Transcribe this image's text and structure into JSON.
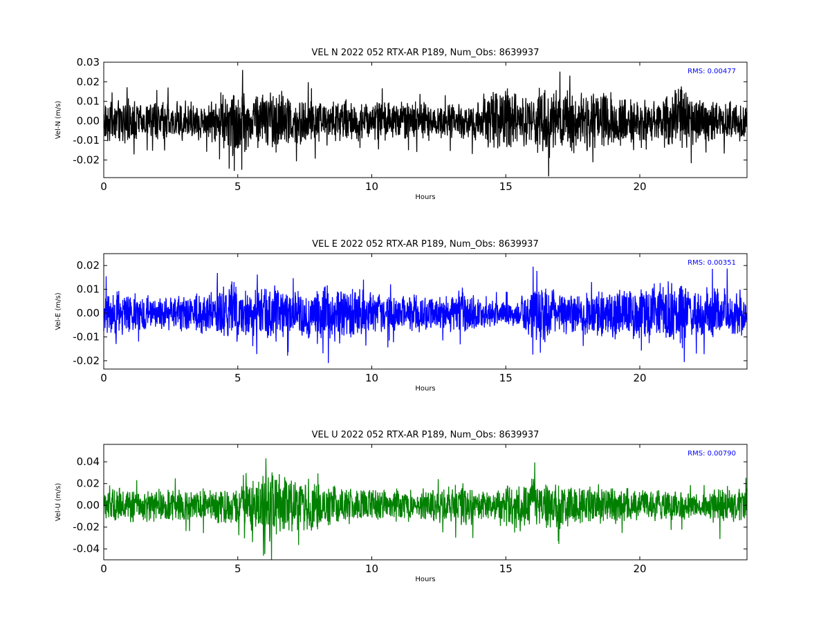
{
  "colors": {
    "north": "#000000",
    "east": "#0000ff",
    "up": "#008000",
    "rms_text": "#0000ff"
  },
  "chart_data": [
    {
      "type": "line",
      "title": "VEL N 2022 052 RTX-AR  P189, Num_Obs: 8639937",
      "xlabel": "Hours",
      "ylabel": "Vel-N (m/s)",
      "xlim": [
        0,
        24
      ],
      "ylim": [
        -0.029,
        0.03
      ],
      "xticks": [
        "0",
        "5",
        "10",
        "15",
        "20"
      ],
      "yticks": [
        "0.03",
        "0.02",
        "0.01",
        "0.00",
        "-0.01",
        "-0.02"
      ],
      "annotation": "RMS:  0.00477",
      "series": [
        {
          "color": "#000000",
          "envelope_hours": [
            0,
            1,
            2,
            3,
            4,
            4.5,
            5,
            5.5,
            6,
            6.5,
            7,
            8,
            9,
            10,
            11,
            12,
            13,
            14,
            14.5,
            15,
            15.5,
            16,
            16.5,
            17,
            18,
            19,
            20,
            21,
            21.5,
            22,
            23,
            24
          ],
          "envelope_amplitude": [
            0.012,
            0.012,
            0.011,
            0.011,
            0.011,
            0.018,
            0.02,
            0.015,
            0.017,
            0.02,
            0.014,
            0.013,
            0.012,
            0.011,
            0.011,
            0.011,
            0.01,
            0.012,
            0.02,
            0.02,
            0.012,
            0.018,
            0.022,
            0.018,
            0.016,
            0.017,
            0.011,
            0.016,
            0.02,
            0.013,
            0.012,
            0.011
          ]
        }
      ]
    },
    {
      "type": "line",
      "title": "VEL E 2022 052 RTX-AR  P189, Num_Obs: 8639937",
      "xlabel": "Hours",
      "ylabel": "Vel-E (m/s)",
      "xlim": [
        0,
        24
      ],
      "ylim": [
        -0.0235,
        0.025
      ],
      "xticks": [
        "0",
        "5",
        "10",
        "15",
        "20"
      ],
      "yticks": [
        "0.02",
        "0.01",
        "0.00",
        "-0.01",
        "-0.02"
      ],
      "annotation": "RMS:  0.00351",
      "series": [
        {
          "color": "#0000ff",
          "envelope_hours": [
            0,
            1,
            2,
            3,
            4,
            4.5,
            5,
            5.5,
            6,
            6.5,
            7,
            8,
            9,
            10,
            11,
            12,
            13,
            13.5,
            14,
            15,
            15.5,
            16,
            16.5,
            17,
            18,
            19,
            20,
            21,
            21.5,
            22,
            23,
            24
          ],
          "envelope_amplitude": [
            0.01,
            0.01,
            0.007,
            0.009,
            0.01,
            0.014,
            0.015,
            0.011,
            0.012,
            0.013,
            0.011,
            0.014,
            0.013,
            0.01,
            0.009,
            0.008,
            0.009,
            0.012,
            0.008,
            0.006,
            0.006,
            0.013,
            0.014,
            0.009,
            0.01,
            0.012,
            0.012,
            0.016,
            0.016,
            0.011,
            0.013,
            0.01
          ]
        }
      ]
    },
    {
      "type": "line",
      "title": "VEL U 2022 052 RTX-AR  P189, Num_Obs: 8639937",
      "xlabel": "Hours",
      "ylabel": "Vel-U (m/s)",
      "xlim": [
        0,
        24
      ],
      "ylim": [
        -0.05,
        0.056
      ],
      "xticks": [
        "0",
        "5",
        "10",
        "15",
        "20"
      ],
      "yticks": [
        "0.04",
        "0.02",
        "0.00",
        "-0.02",
        "-0.04"
      ],
      "annotation": "RMS:  0.00790",
      "series": [
        {
          "color": "#008000",
          "envelope_hours": [
            0,
            1,
            2,
            3,
            4,
            5,
            5.5,
            6,
            6.5,
            7,
            7.5,
            8,
            9,
            10,
            11,
            12,
            13,
            13.5,
            14,
            14.5,
            15,
            16,
            17,
            18,
            19,
            20,
            21,
            22,
            22.5,
            23,
            24
          ],
          "envelope_amplitude": [
            0.02,
            0.018,
            0.016,
            0.017,
            0.018,
            0.02,
            0.024,
            0.032,
            0.036,
            0.026,
            0.03,
            0.024,
            0.018,
            0.018,
            0.017,
            0.016,
            0.018,
            0.024,
            0.016,
            0.012,
            0.026,
            0.026,
            0.024,
            0.022,
            0.018,
            0.016,
            0.018,
            0.014,
            0.012,
            0.022,
            0.018
          ]
        }
      ]
    }
  ]
}
